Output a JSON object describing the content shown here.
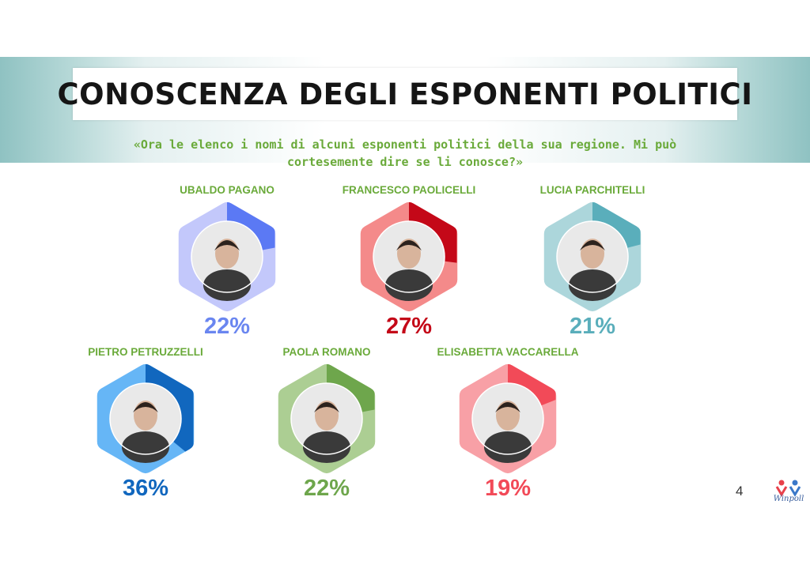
{
  "header": {
    "title": "CONOSCENZA DEGLI ESPONENTI POLITICI",
    "subtitle_line1": "«Ora le elenco i nomi di alcuni esponenti politici della sua regione. Mi può",
    "subtitle_line2": "cortesemente dire se li conosce?»"
  },
  "chart_data": {
    "type": "donut",
    "title": "CONOSCENZA DEGLI ESPONENTI POLITICI",
    "unit": "%",
    "max": 100,
    "series": [
      {
        "name": "UBALDO PAGANO",
        "value": 22,
        "label": "22%",
        "accent": "#5b79f4",
        "light": "#c3c8fb",
        "label_color": "#6a86f0"
      },
      {
        "name": "FRANCESCO PAOLICELLI",
        "value": 27,
        "label": "27%",
        "accent": "#c40818",
        "light": "#f48a8a",
        "label_color": "#c40818"
      },
      {
        "name": "LUCIA PARCHITELLI",
        "value": 21,
        "label": "21%",
        "accent": "#5aaebb",
        "light": "#acd6db",
        "label_color": "#5aaebb"
      },
      {
        "name": "PIETRO PETRUZZELLI",
        "value": 36,
        "label": "36%",
        "accent": "#1167be",
        "light": "#66b6f6",
        "label_color": "#1167be"
      },
      {
        "name": "PAOLA ROMANO",
        "value": 22,
        "label": "22%",
        "accent": "#6ea64c",
        "light": "#acce93",
        "label_color": "#6ea64c"
      },
      {
        "name": "ELISABETTA VACCARELLA",
        "value": 19,
        "label": "19%",
        "accent": "#f24a58",
        "light": "#f8a0a6",
        "label_color": "#f24a58"
      }
    ],
    "name_color": "#6aaa3a"
  },
  "footer": {
    "page_number": "4",
    "logo_text": "Winpoll"
  }
}
